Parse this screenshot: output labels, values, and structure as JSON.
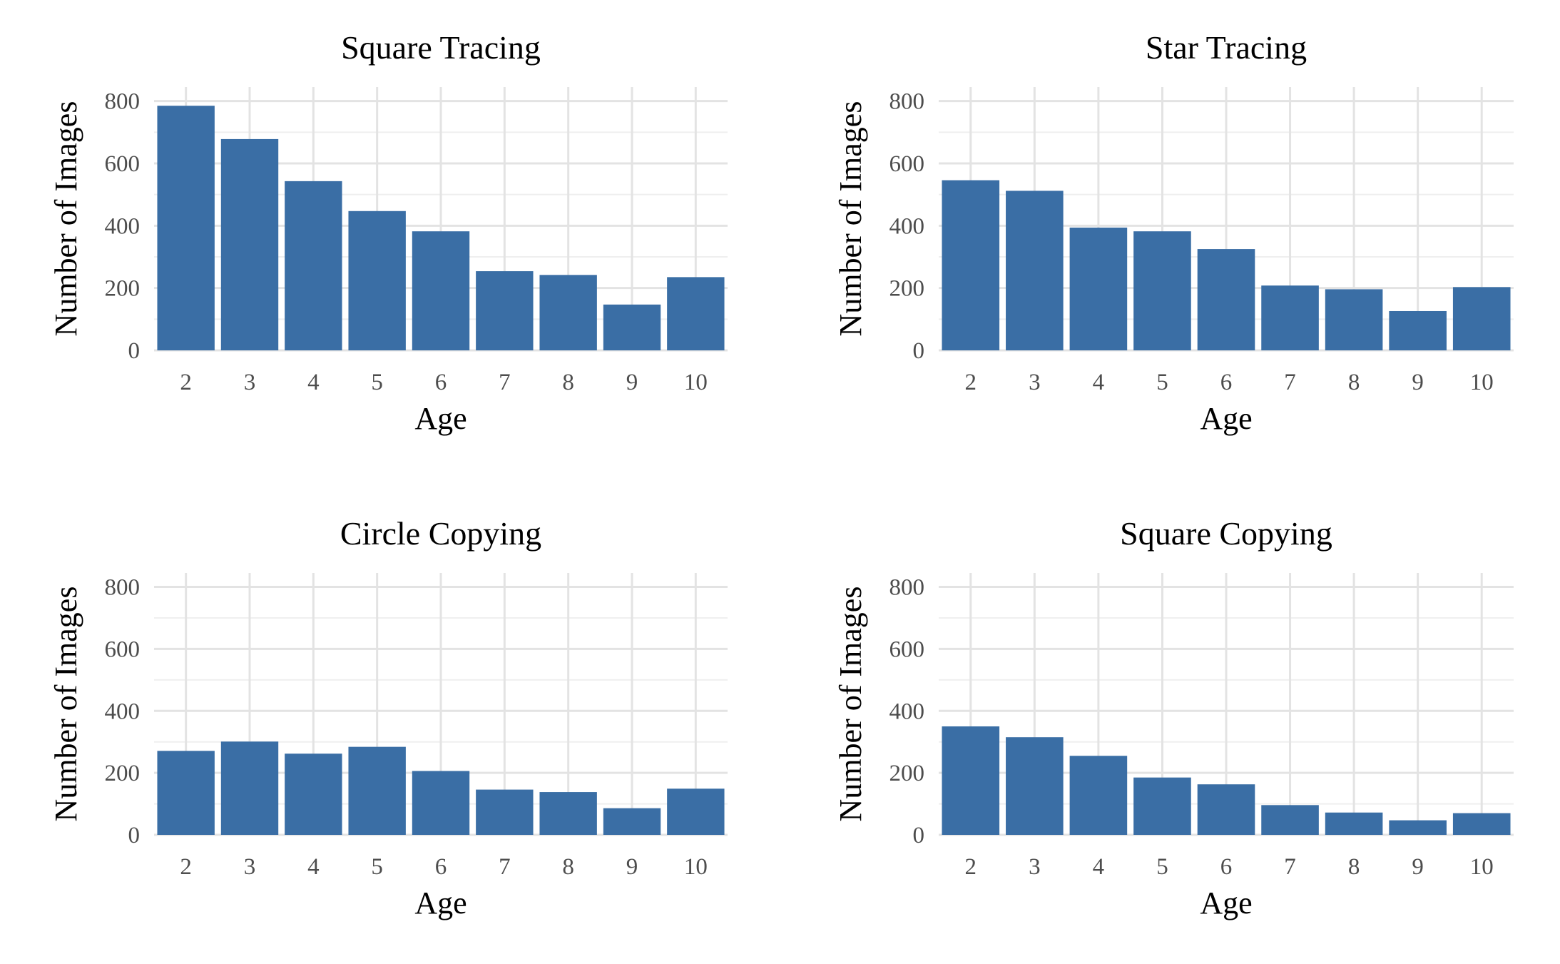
{
  "chart_data": [
    {
      "type": "bar",
      "title": "Square Tracing",
      "xlabel": "Age",
      "ylabel": "Number of Images",
      "categories": [
        "2",
        "3",
        "4",
        "5",
        "6",
        "7",
        "8",
        "9",
        "10"
      ],
      "values": [
        785,
        678,
        543,
        447,
        382,
        254,
        242,
        147,
        235
      ],
      "ylim": [
        0,
        800
      ],
      "yticks": [
        "0",
        "200",
        "400",
        "600",
        "800"
      ],
      "color": "#3a6ea5",
      "grid": true
    },
    {
      "type": "bar",
      "title": "Star Tracing",
      "xlabel": "Age",
      "ylabel": "Number of Images",
      "categories": [
        "2",
        "3",
        "4",
        "5",
        "6",
        "7",
        "8",
        "9",
        "10"
      ],
      "values": [
        546,
        512,
        394,
        382,
        325,
        208,
        196,
        126,
        203
      ],
      "ylim": [
        0,
        800
      ],
      "yticks": [
        "0",
        "200",
        "400",
        "600",
        "800"
      ],
      "color": "#3a6ea5",
      "grid": true
    },
    {
      "type": "bar",
      "title": "Circle Copying",
      "xlabel": "Age",
      "ylabel": "Number of Images",
      "categories": [
        "2",
        "3",
        "4",
        "5",
        "6",
        "7",
        "8",
        "9",
        "10"
      ],
      "values": [
        271,
        301,
        262,
        284,
        206,
        146,
        138,
        86,
        149
      ],
      "ylim": [
        0,
        800
      ],
      "yticks": [
        "0",
        "200",
        "400",
        "600",
        "800"
      ],
      "color": "#3a6ea5",
      "grid": true
    },
    {
      "type": "bar",
      "title": "Square Copying",
      "xlabel": "Age",
      "ylabel": "Number of Images",
      "categories": [
        "2",
        "3",
        "4",
        "5",
        "6",
        "7",
        "8",
        "9",
        "10"
      ],
      "values": [
        350,
        315,
        255,
        185,
        163,
        96,
        72,
        47,
        70
      ],
      "ylim": [
        0,
        800
      ],
      "yticks": [
        "0",
        "200",
        "400",
        "600",
        "800"
      ],
      "color": "#3a6ea5",
      "grid": true
    }
  ]
}
